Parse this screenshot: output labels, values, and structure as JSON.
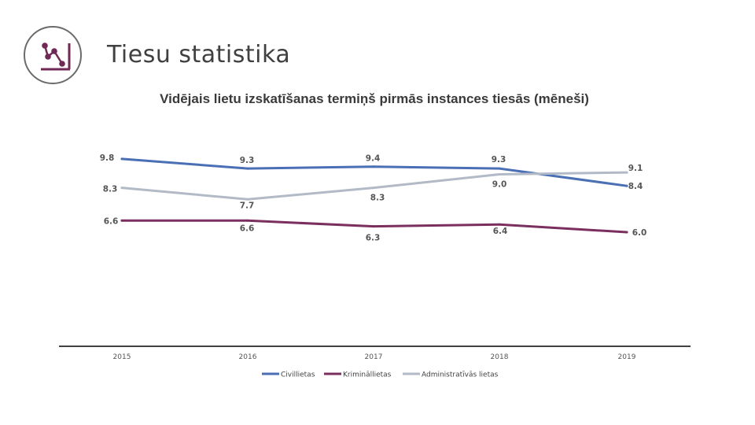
{
  "header": {
    "title": "Tiesu statistika",
    "logo_icon": "chart-line-icon",
    "accent": "#6e2a55"
  },
  "chart_data": {
    "type": "line",
    "title": "Vidējais lietu izskatīšanas termiņš pirmās instances tiesās (mēneši)",
    "categories": [
      "2015",
      "2016",
      "2017",
      "2018",
      "2019"
    ],
    "series": [
      {
        "name": "Civillietas",
        "color": "#4a6fb5",
        "values": [
          9.8,
          9.3,
          9.4,
          9.3,
          8.4
        ],
        "labels": [
          "9.8",
          "9.3",
          "9.4",
          "9.3",
          "8.4"
        ]
      },
      {
        "name": "Krimināllietas",
        "color": "#7b2f5e",
        "values": [
          6.6,
          6.6,
          6.3,
          6.4,
          6.0
        ],
        "labels": [
          "6.6",
          "6.6",
          "6.3",
          "6.4",
          "6.0"
        ]
      },
      {
        "name": "Administratīvās lietas",
        "color": "#b3bac7",
        "values": [
          8.3,
          7.7,
          8.3,
          9.0,
          9.1
        ],
        "labels": [
          "8.3",
          "7.7",
          "8.3",
          "9.0",
          "9.1"
        ]
      }
    ],
    "xlabel": "",
    "ylabel": "",
    "legend": "bottom",
    "grid": false
  }
}
